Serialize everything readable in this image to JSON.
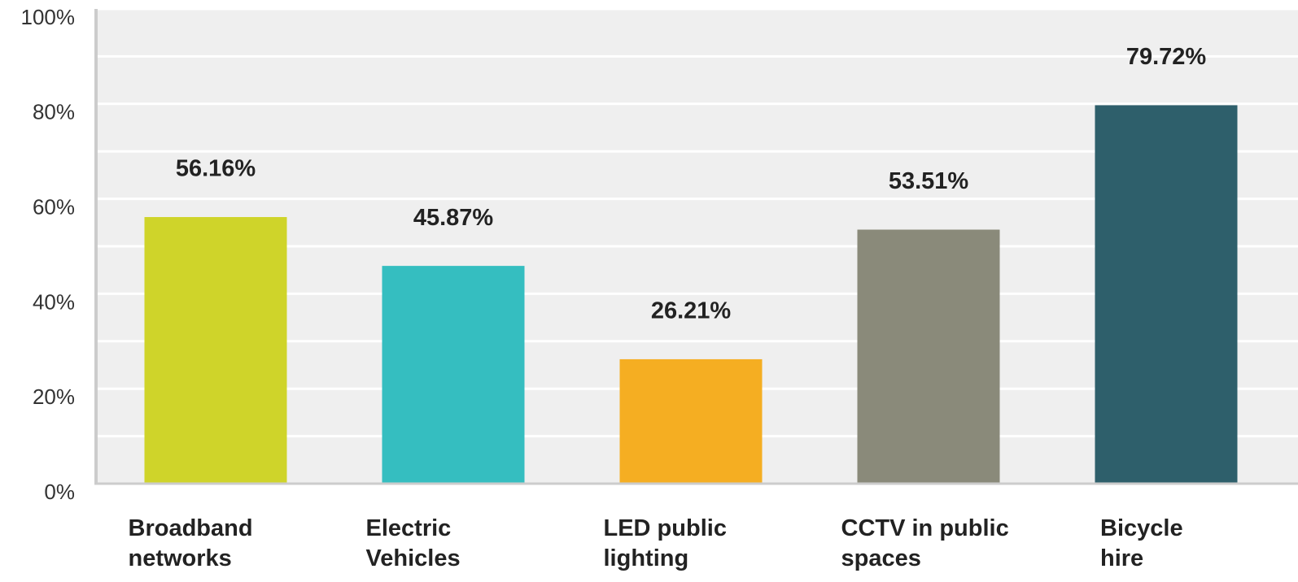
{
  "chart_data": {
    "type": "bar",
    "categories": [
      "Broadband networks",
      "Electric Vehicles",
      "LED public lighting",
      "CCTV in public spaces",
      "Bicycle hire"
    ],
    "values": [
      56.16,
      45.87,
      26.21,
      53.51,
      79.72
    ],
    "value_labels": [
      "56.16%",
      "45.87%",
      "26.21%",
      "53.51%",
      "79.72%"
    ],
    "colors": [
      "#cfd42a",
      "#35bec0",
      "#f5ae22",
      "#8a8a7a",
      "#2e5f6b"
    ],
    "ylim": [
      0,
      100
    ],
    "yticks": [
      {
        "value": 0,
        "label": "0%"
      },
      {
        "value": 20,
        "label": "20%"
      },
      {
        "value": 40,
        "label": "40%"
      },
      {
        "value": 60,
        "label": "60%"
      },
      {
        "value": 80,
        "label": "80%"
      },
      {
        "value": 100,
        "label": "100%"
      }
    ],
    "minor_yticks": [
      10,
      30,
      50,
      70,
      90
    ],
    "grid": true
  }
}
